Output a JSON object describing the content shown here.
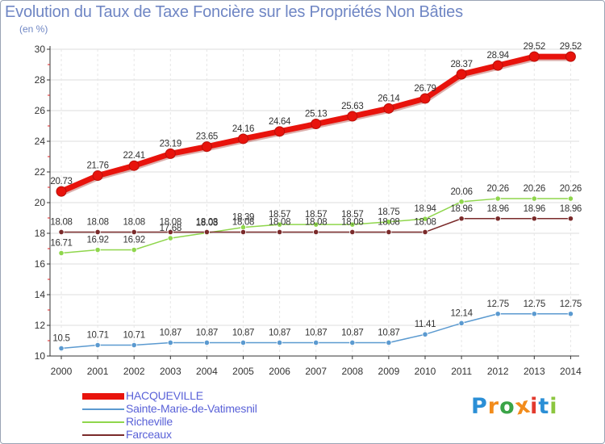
{
  "title": "Evolution du Taux de Taxe Foncière sur les Propriétés Non Bâties",
  "subtitle": "(en %)",
  "logo": {
    "text": "Proxiti",
    "letters": [
      "P",
      "r",
      "o",
      "x",
      "i",
      "t",
      "i"
    ],
    "colors": [
      "#2b8fd6",
      "#f28c1c",
      "#3aa447",
      "#f28c1c",
      "#e23a2e",
      "#2b8fd6",
      "#8cc63f"
    ]
  },
  "chart_data": {
    "type": "line",
    "title": "Evolution du Taux de Taxe Foncière sur les Propriétés Non Bâties",
    "ylabel": "(en %)",
    "xlabel": "",
    "x": [
      "2000",
      "2001",
      "2002",
      "2003",
      "2004",
      "2005",
      "2006",
      "2007",
      "2008",
      "2009",
      "2010",
      "2011",
      "2012",
      "2013",
      "2014"
    ],
    "ylim": [
      10,
      30
    ],
    "yticks": [
      10,
      12,
      14,
      16,
      18,
      20,
      22,
      24,
      26,
      28,
      30
    ],
    "grid": true,
    "legend_position": "bottom-left",
    "series": [
      {
        "name": "HACQUEVILLE",
        "color": "#e8130c",
        "values": [
          20.73,
          21.76,
          22.41,
          23.19,
          23.65,
          24.16,
          24.64,
          25.13,
          25.63,
          26.14,
          26.79,
          28.37,
          28.94,
          29.52,
          29.52
        ],
        "labels": [
          "20.73",
          "21.76",
          "22.41",
          "23.19",
          "23.65",
          "24.16",
          "24.64",
          "25.13",
          "25.63",
          "26.14",
          "26.79",
          "28.37",
          "28.94",
          "29.52",
          "29.52"
        ]
      },
      {
        "name": "Sainte-Marie-de-Vatimesnil",
        "color": "#5b9ad0",
        "values": [
          10.5,
          10.71,
          10.71,
          10.87,
          10.87,
          10.87,
          10.87,
          10.87,
          10.87,
          10.87,
          11.41,
          12.14,
          12.75,
          12.75,
          12.75
        ],
        "labels": [
          "10.5",
          "10.71",
          "10.71",
          "10.87",
          "10.87",
          "10.87",
          "10.87",
          "10.87",
          "10.87",
          "10.87",
          "11.41",
          "12.14",
          "12.75",
          "12.75",
          "12.75"
        ]
      },
      {
        "name": "Richeville",
        "color": "#8fd64c",
        "values": [
          16.71,
          16.92,
          16.92,
          17.68,
          18.03,
          18.39,
          18.57,
          18.57,
          18.57,
          18.75,
          18.94,
          20.06,
          20.26,
          20.26,
          20.26
        ],
        "labels": [
          "16.71",
          "16.92",
          "16.92",
          "17.68",
          "18.03",
          "18.39",
          "18.57",
          "18.57",
          "18.57",
          "18.75",
          "18.94",
          "20.06",
          "20.26",
          "20.26",
          "20.26"
        ]
      },
      {
        "name": "Farceaux",
        "color": "#7a2a2a",
        "values": [
          18.08,
          18.08,
          18.08,
          18.08,
          18.08,
          18.08,
          18.08,
          18.08,
          18.08,
          18.08,
          18.08,
          18.96,
          18.96,
          18.96,
          18.96
        ],
        "labels": [
          "18.08",
          "18.08",
          "18.08",
          "18.08",
          "18.08",
          "18.08",
          "18.08",
          "18.08",
          "18.08",
          "18.08",
          "18.08",
          "18.96",
          "18.96",
          "18.96",
          "18.96"
        ]
      }
    ]
  }
}
